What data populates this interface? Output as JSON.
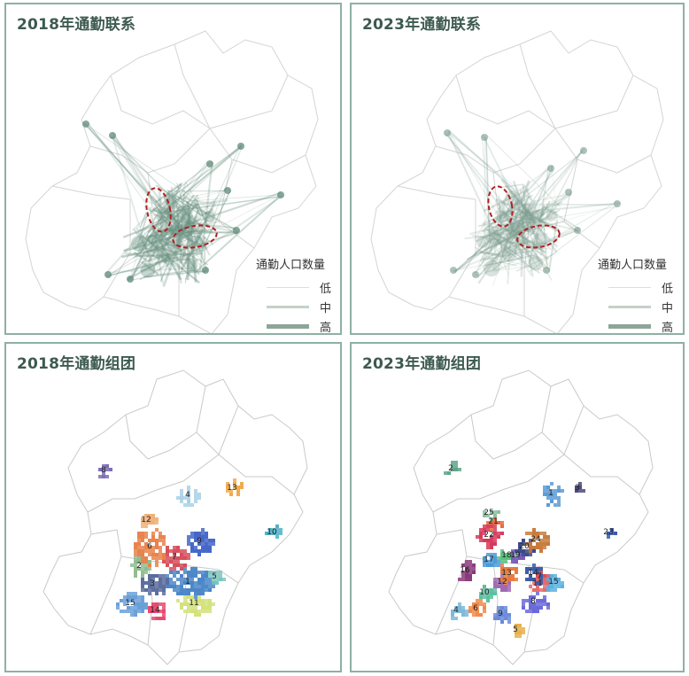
{
  "panels": {
    "p1": {
      "title": "2018年通勤联系"
    },
    "p2": {
      "title": "2023年通勤联系"
    },
    "p3": {
      "title": "2018年通勤组团"
    },
    "p4": {
      "title": "2023年通勤组团"
    }
  },
  "legend": {
    "title": "通勤人口数量",
    "items": [
      {
        "label": "低",
        "color": "#d9e1dc"
      },
      {
        "label": "中",
        "color": "#c4d1c9"
      },
      {
        "label": "高",
        "color": "#8ea599"
      }
    ]
  },
  "clusters_2018": [
    "1",
    "2",
    "3",
    "4",
    "5",
    "6",
    "7",
    "8",
    "9",
    "10",
    "11",
    "12",
    "13",
    "14",
    "15"
  ],
  "clusters_2023": [
    "1",
    "2",
    "3",
    "4",
    "5",
    "6",
    "7",
    "8",
    "9",
    "10",
    "11",
    "12",
    "13",
    "14",
    "15",
    "16",
    "17",
    "18",
    "19",
    "20",
    "21",
    "22",
    "23",
    "24",
    "25"
  ],
  "colors": {
    "border": "#8fb0a3",
    "title": "#3d5a50",
    "flow": "#6e9484",
    "highlight": "#b21f1f",
    "outline": "#c8c8c8"
  }
}
